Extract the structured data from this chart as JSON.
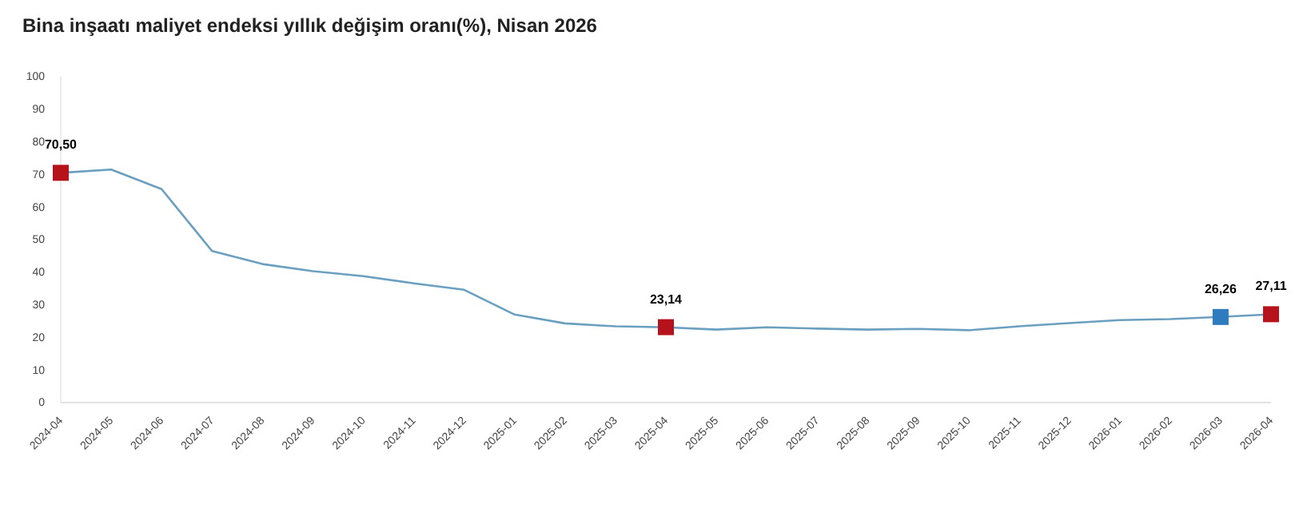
{
  "chart_data": {
    "type": "line",
    "title": "Bina inşaatı maliyet endeksi yıllık değişim oranı(%), Nisan 2026",
    "categories": [
      "2024-04",
      "2024-05",
      "2024-06",
      "2024-07",
      "2024-08",
      "2024-09",
      "2024-10",
      "2024-11",
      "2024-12",
      "2025-01",
      "2025-02",
      "2025-03",
      "2025-04",
      "2025-05",
      "2025-06",
      "2025-07",
      "2025-08",
      "2025-09",
      "2025-10",
      "2025-11",
      "2025-12",
      "2026-01",
      "2026-02",
      "2026-03",
      "2026-04"
    ],
    "series": [
      {
        "color": "#6a9fbf",
        "marker": "none",
        "values": [
          70.5,
          71.5,
          65.5,
          46.5,
          42.5,
          40.3,
          38.8,
          36.6,
          34.6,
          27,
          24.3,
          23.4,
          23.1,
          22.4,
          23.1,
          22.7,
          22.4,
          22.6,
          22.2,
          23.4,
          24.4,
          25.3,
          25.6,
          26.3,
          27.1
        ]
      },
      {
        "type": "scatter",
        "marker": "square",
        "values": [
          70.5,
          null,
          null,
          null,
          null,
          null,
          null,
          null,
          null,
          null,
          null,
          null,
          23.14,
          null,
          null,
          null,
          null,
          null,
          null,
          null,
          null,
          null,
          null,
          26.26,
          27.11
        ],
        "colors": [
          "#b5121b",
          null,
          null,
          null,
          null,
          null,
          null,
          null,
          null,
          null,
          null,
          null,
          "#b5121b",
          null,
          null,
          null,
          null,
          null,
          null,
          null,
          null,
          null,
          null,
          "#2e7bbf",
          "#b5121b"
        ],
        "value_labels": [
          "70,50",
          null,
          null,
          null,
          null,
          null,
          null,
          null,
          null,
          null,
          null,
          null,
          "23,14",
          null,
          null,
          null,
          null,
          null,
          null,
          null,
          null,
          null,
          null,
          "26,26",
          "27,11"
        ]
      }
    ],
    "ylim": [
      0,
      100
    ],
    "yticks": [
      0,
      10,
      20,
      30,
      40,
      50,
      60,
      70,
      80,
      90,
      100
    ],
    "grid": false
  }
}
